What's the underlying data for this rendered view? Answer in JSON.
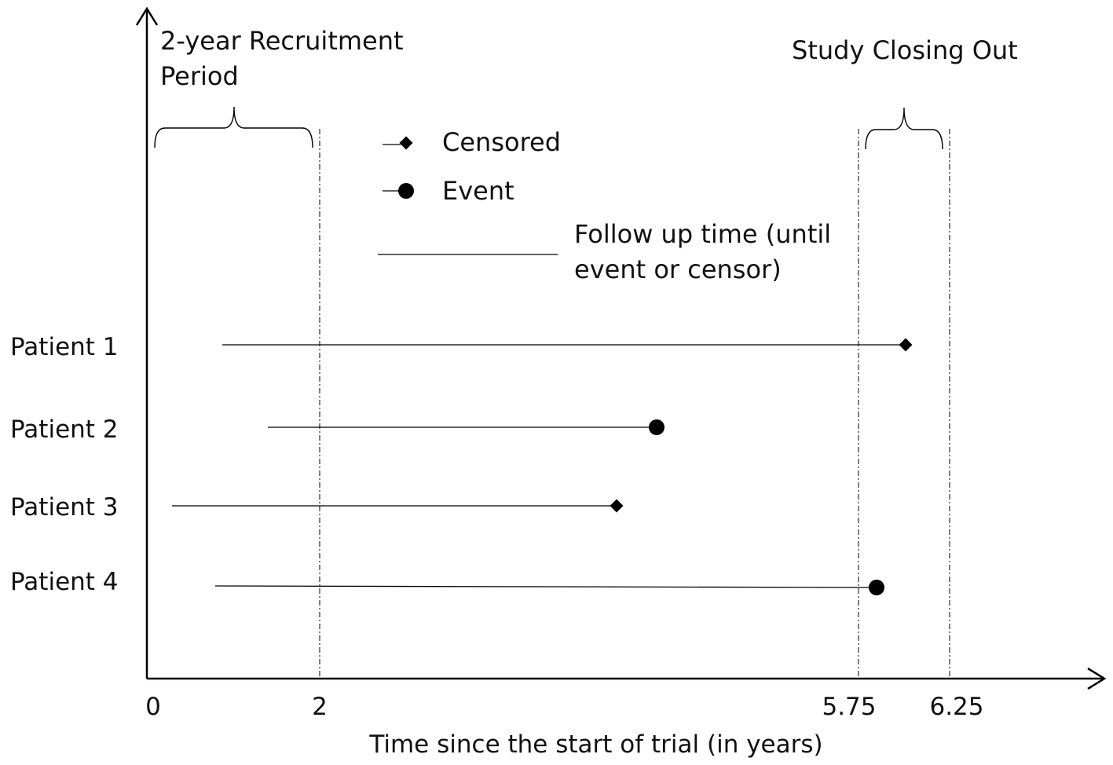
{
  "chart_data": {
    "type": "timeline",
    "xlabel": "Time since the start of trial (in years)",
    "ticks": [
      {
        "value": 0,
        "label": "0"
      },
      {
        "value": 2,
        "label": "2"
      },
      {
        "value": 5.75,
        "label": "5.75"
      },
      {
        "value": 6.25,
        "label": "6.25"
      }
    ],
    "xlim": [
      0,
      11
    ],
    "reference_lines": [
      2,
      5.75,
      6.25
    ],
    "periods": [
      {
        "label_lines": [
          "2-year Recruitment",
          "Period"
        ],
        "start": 0.1,
        "end": 1.93
      },
      {
        "label_lines": [
          "Study Closing Out"
        ],
        "start": 5.83,
        "end": 6.17
      }
    ],
    "legend": [
      {
        "marker": "diamond",
        "label": "Censored"
      },
      {
        "marker": "circle",
        "label": "Event"
      },
      {
        "marker": "line",
        "label_lines": [
          "Follow up time (until",
          "event or censor)"
        ]
      }
    ],
    "patients": [
      {
        "label": "Patient 1",
        "start": 0.87,
        "end": 5.8,
        "outcome": "censored"
      },
      {
        "label": "Patient 2",
        "start": 1.4,
        "end": 5.55,
        "outcome": "event"
      },
      {
        "label": "Patient 3",
        "start": 0.3,
        "end": 5.4,
        "outcome": "censored"
      },
      {
        "label": "Patient 4",
        "start": 0.8,
        "end": 5.8,
        "outcome": "event"
      }
    ]
  }
}
